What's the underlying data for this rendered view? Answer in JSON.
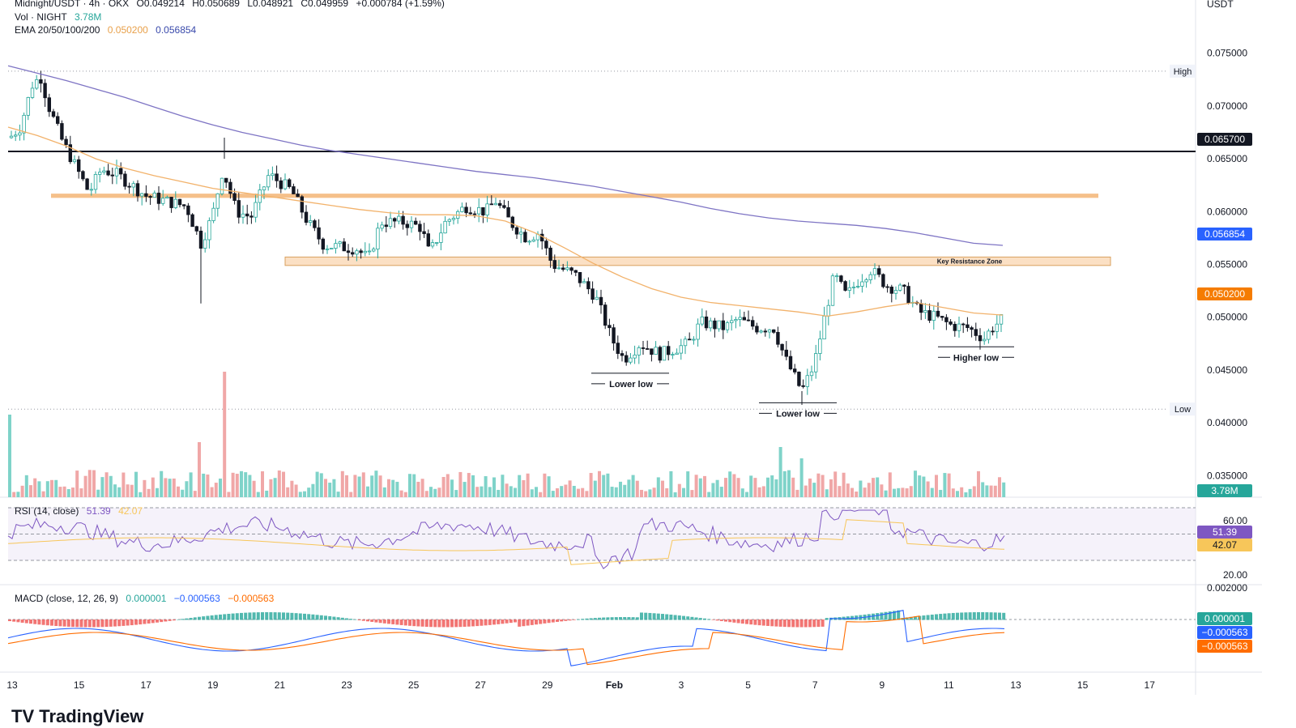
{
  "header": {
    "symbol": "Midnight/USDT · 4h · OKX",
    "open": "O0.049214",
    "high": "H0.050689",
    "low": "L0.048921",
    "close": "C0.049959",
    "change": "+0.000784 (+1.59%)",
    "vol_label": "Vol · NIGHT",
    "vol_value": "3.78M",
    "ema_label": "EMA 20/50/100/200",
    "ema50_value": "0.050200",
    "ema200_value": "0.056854",
    "currency": "USDT"
  },
  "rsi_legend": {
    "label": "RSI (14, close)",
    "rsi": "51.39",
    "ma": "42.07"
  },
  "macd_legend": {
    "label": "MACD (close, 12, 26, 9)",
    "hist": "0.000001",
    "macd": "−0.000563",
    "signal": "−0.000563"
  },
  "tags": {
    "line": "0.065700",
    "ema200": "0.056854",
    "ema50": "0.050200",
    "vol": "3.78M",
    "rsi": "51.39",
    "rsi_ma": "42.07",
    "macd_hist": "0.000001",
    "macd": "−0.000563",
    "signal": "−0.000563"
  },
  "colors": {
    "up": "#26a69a",
    "down": "#131722",
    "vol_up": "#7fd3c9",
    "vol_down": "#f0a7a7",
    "ema50": "#f2b26b",
    "ema200": "#7e74c4",
    "zone": "#f5c08a",
    "rsi": "#7e57c2",
    "rsi_ma": "#f7c65a",
    "macd": "#2962ff",
    "signal": "#ff6d00"
  },
  "chart_data": [
    {
      "type": "candlestick",
      "x_ticks": [
        "13",
        "15",
        "17",
        "19",
        "21",
        "23",
        "25",
        "27",
        "29",
        "Feb",
        "3",
        "5",
        "7",
        "9",
        "11",
        "13",
        "15",
        "17"
      ],
      "y_ticks": [
        "0.075000",
        "0.070000",
        "0.065000",
        "0.060000",
        "0.055000",
        "0.050000",
        "0.045000",
        "0.040000",
        "0.035000"
      ],
      "ylim": [
        0.0325,
        0.0785
      ],
      "horizontal_line": 0.0657,
      "zones": [
        {
          "from": 0.0613,
          "to": 0.0617,
          "label": ""
        },
        {
          "from": 0.0549,
          "to": 0.0557,
          "label": "Key Resistance Zone"
        }
      ],
      "high_line": {
        "value": 0.0733,
        "label": "High"
      },
      "low_line": {
        "value": 0.0413,
        "label": "Low"
      },
      "annotations": [
        {
          "label": "Lower low",
          "value": 0.0447
        },
        {
          "label": "Lower low",
          "value": 0.0419
        },
        {
          "label": "Higher low",
          "value": 0.0472
        }
      ],
      "ema50": [
        0.068,
        0.0672,
        0.0662,
        0.065,
        0.0641,
        0.0634,
        0.0628,
        0.0622,
        0.0618,
        0.0614,
        0.061,
        0.0606,
        0.0602,
        0.0599,
        0.0597,
        0.0597,
        0.0596,
        0.0591,
        0.058,
        0.0566,
        0.0551,
        0.0538,
        0.0527,
        0.0519,
        0.0514,
        0.0511,
        0.0508,
        0.0505,
        0.0501,
        0.0505,
        0.051,
        0.0514,
        0.0509,
        0.0504,
        0.0502
      ],
      "ema200": [
        0.0738,
        0.0731,
        0.0724,
        0.0716,
        0.0708,
        0.0699,
        0.069,
        0.0682,
        0.0675,
        0.0669,
        0.0663,
        0.0658,
        0.0654,
        0.065,
        0.0646,
        0.0642,
        0.0638,
        0.0635,
        0.0632,
        0.0628,
        0.0624,
        0.0619,
        0.0614,
        0.0609,
        0.0603,
        0.0598,
        0.0594,
        0.0591,
        0.0589,
        0.0587,
        0.0584,
        0.058,
        0.0575,
        0.057,
        0.0568
      ]
    }
  ]
}
